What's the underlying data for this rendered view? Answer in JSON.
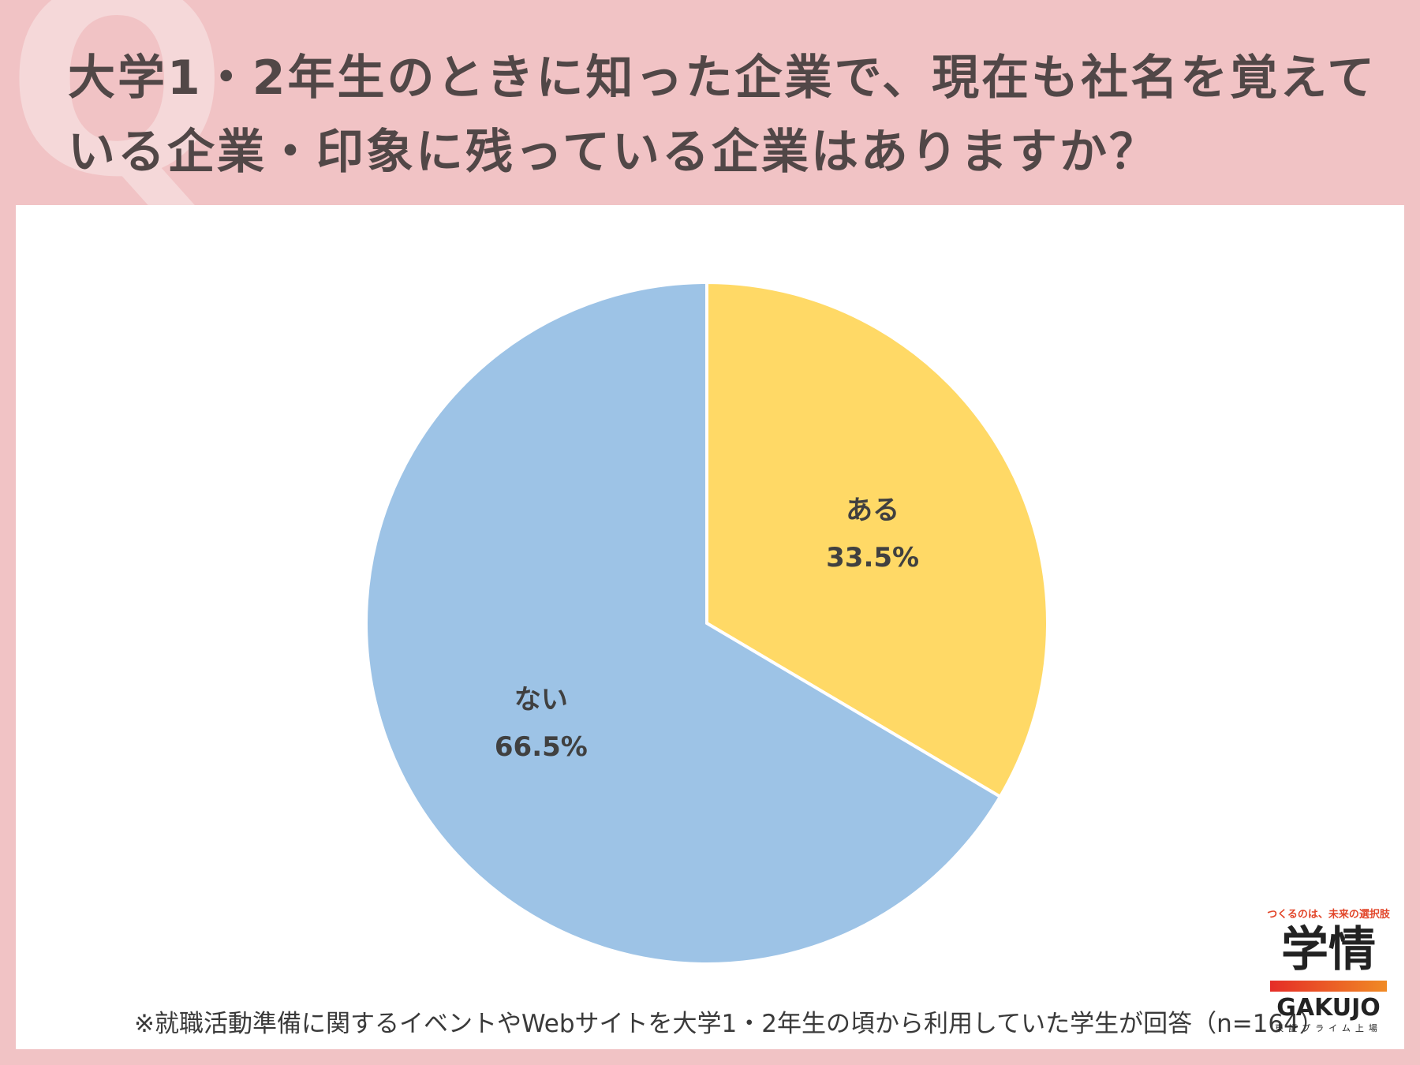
{
  "header": {
    "question_line1": "大学1・2年生のときに知った企業で、現在も社名を覚えて",
    "question_line2": "いる企業・印象に残っている企業はありますか？",
    "decor_letter": "Q"
  },
  "chart_data": {
    "type": "pie",
    "title": "大学1・2年生のときに知った企業で、現在も社名を覚えている企業・印象に残っている企業はありますか？",
    "slices": [
      {
        "label": "ある",
        "value": 33.5,
        "display": "33.5%",
        "color": "#ffd966"
      },
      {
        "label": "ない",
        "value": 66.5,
        "display": "66.5%",
        "color": "#9dc3e6"
      }
    ],
    "start_angle_deg": 0,
    "direction": "clockwise"
  },
  "footnote": "※就職活動準備に関するイベントやWebサイトを大学1・2年生の頃から利用していた学生が回答（n=164）",
  "logo": {
    "tagline": "つくるのは、未来の選択肢",
    "name_jp": "学情",
    "name_en": "GAKUJO",
    "sub": "東証プライム上場"
  },
  "colors": {
    "background": "#f1c3c5",
    "panel": "#ffffff",
    "text": "#514747"
  }
}
